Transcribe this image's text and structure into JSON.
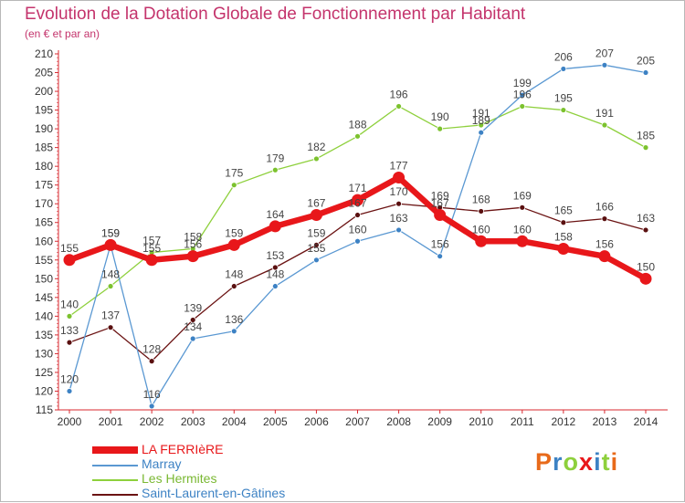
{
  "title": "Evolution de la Dotation Globale de Fonctionnement par Habitant",
  "subtitle": "(en € et par an)",
  "logo_text": "Proxiti",
  "chart_data": {
    "type": "line",
    "title": "Evolution de la Dotation Globale de Fonctionnement par Habitant",
    "subtitle": "(en € et par an)",
    "x": [
      2000,
      2001,
      2002,
      2003,
      2004,
      2005,
      2006,
      2007,
      2008,
      2009,
      2010,
      2011,
      2012,
      2013,
      2014
    ],
    "ylim": [
      115,
      210
    ],
    "yticks": [
      115,
      120,
      125,
      130,
      135,
      140,
      145,
      150,
      155,
      160,
      165,
      170,
      175,
      180,
      185,
      190,
      195,
      200,
      205,
      210
    ],
    "grid": false,
    "legend_position": "bottom-left",
    "series": [
      {
        "name": "Saint-Laurent-en-Gâtines",
        "color": "#6b1313",
        "values": [
          133,
          137,
          128,
          139,
          148,
          153,
          159,
          167,
          170,
          169,
          168,
          169,
          165,
          166,
          163
        ],
        "labels": [
          "133",
          "137",
          "128",
          "139",
          "148",
          "153",
          "159",
          "167",
          "170",
          "169",
          "168",
          "169",
          "165",
          "166",
          "163"
        ]
      },
      {
        "name": "Les Hermites",
        "color": "#8ed03c",
        "values": [
          140,
          148,
          157,
          158,
          175,
          179,
          182,
          188,
          196,
          190,
          191,
          196,
          195,
          191,
          185
        ],
        "labels": [
          "140",
          "148",
          "157",
          "158",
          "175",
          "179",
          "182",
          "188",
          "196",
          "190",
          "191",
          "196",
          "195",
          "191",
          "185"
        ]
      },
      {
        "name": "Marray",
        "color": "#5a98d2",
        "values": [
          120,
          159,
          116,
          134,
          136,
          148,
          155,
          160,
          163,
          156,
          189,
          199,
          206,
          207,
          205
        ],
        "labels": [
          "120",
          "159",
          "116",
          "134",
          "136",
          "148",
          "155",
          "160",
          "163",
          "156",
          "189",
          "199",
          "206",
          "207",
          "205"
        ]
      },
      {
        "name": "LA FERRIèRE",
        "color": "#e8171a",
        "values": [
          155,
          159,
          155,
          156,
          159,
          164,
          167,
          171,
          177,
          167,
          160,
          160,
          158,
          156,
          150
        ],
        "labels": [
          "155",
          "159",
          "155",
          "156",
          "159",
          "164",
          "167",
          "171",
          "177",
          "167",
          "160",
          "160",
          "158",
          "156",
          "150"
        ]
      }
    ],
    "legend": [
      "LA FERRIèRE",
      "Marray",
      "Les Hermites",
      "Saint-Laurent-en-Gâtines"
    ]
  }
}
